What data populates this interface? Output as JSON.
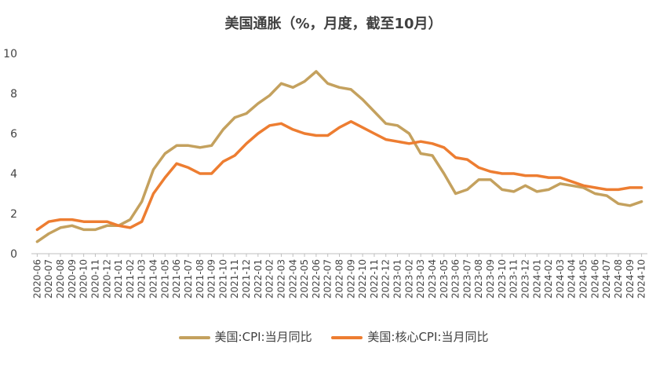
{
  "chart_data": {
    "type": "line",
    "title": "美国通胀（%，月度，截至10月）",
    "ylim": [
      0,
      10
    ],
    "yticks": [
      "0",
      "2",
      "4",
      "6",
      "8",
      "10"
    ],
    "grid": false,
    "legend_position": "bottom",
    "x": [
      "2020-06",
      "2020-07",
      "2020-08",
      "2020-09",
      "2020-10",
      "2020-11",
      "2020-12",
      "2021-01",
      "2021-02",
      "2021-03",
      "2021-04",
      "2021-05",
      "2021-06",
      "2021-07",
      "2021-08",
      "2021-09",
      "2021-10",
      "2021-11",
      "2021-12",
      "2022-01",
      "2022-02",
      "2022-03",
      "2022-04",
      "2022-05",
      "2022-06",
      "2022-07",
      "2022-08",
      "2022-09",
      "2022-10",
      "2022-11",
      "2022-12",
      "2023-01",
      "2023-02",
      "2023-03",
      "2023-04",
      "2023-05",
      "2023-06",
      "2023-07",
      "2023-08",
      "2023-09",
      "2023-10",
      "2023-11",
      "2023-12",
      "2024-01",
      "2024-02",
      "2024-03",
      "2024-04",
      "2024-05",
      "2024-06",
      "2024-07",
      "2024-08",
      "2024-09",
      "2024-10"
    ],
    "series": [
      {
        "name": "美国:CPI:当月同比",
        "color": "#C4A15E",
        "values": [
          0.6,
          1.0,
          1.3,
          1.4,
          1.2,
          1.2,
          1.4,
          1.4,
          1.7,
          2.6,
          4.2,
          5.0,
          5.4,
          5.4,
          5.3,
          5.4,
          6.2,
          6.8,
          7.0,
          7.5,
          7.9,
          8.5,
          8.3,
          8.6,
          9.1,
          8.5,
          8.3,
          8.2,
          7.7,
          7.1,
          6.5,
          6.4,
          6.0,
          5.0,
          4.9,
          4.0,
          3.0,
          3.2,
          3.7,
          3.7,
          3.2,
          3.1,
          3.4,
          3.1,
          3.2,
          3.5,
          3.4,
          3.3,
          3.0,
          2.9,
          2.5,
          2.4,
          2.6
        ]
      },
      {
        "name": "美国:核心CPI:当月同比",
        "color": "#ED7D31",
        "values": [
          1.2,
          1.6,
          1.7,
          1.7,
          1.6,
          1.6,
          1.6,
          1.4,
          1.3,
          1.6,
          3.0,
          3.8,
          4.5,
          4.3,
          4.0,
          4.0,
          4.6,
          4.9,
          5.5,
          6.0,
          6.4,
          6.5,
          6.2,
          6.0,
          5.9,
          5.9,
          6.3,
          6.6,
          6.3,
          6.0,
          5.7,
          5.6,
          5.5,
          5.6,
          5.5,
          5.3,
          4.8,
          4.7,
          4.3,
          4.1,
          4.0,
          4.0,
          3.9,
          3.9,
          3.8,
          3.8,
          3.6,
          3.4,
          3.3,
          3.2,
          3.2,
          3.3,
          3.3
        ]
      }
    ]
  }
}
